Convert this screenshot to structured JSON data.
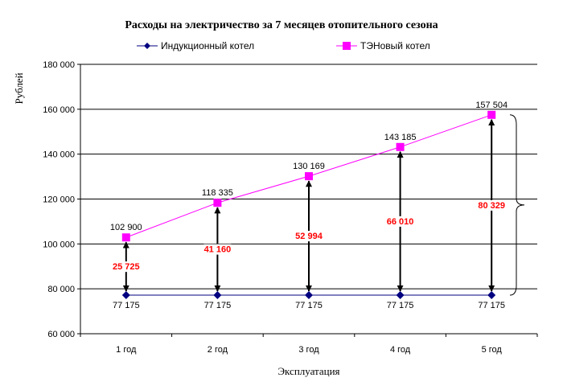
{
  "chart_data": {
    "type": "line",
    "title": "Расходы на электричество за 7 месяцев отопительного сезона",
    "xlabel": "Эксплуатация",
    "ylabel": "Рублей",
    "categories": [
      "1 год",
      "2 год",
      "3 год",
      "4 год",
      "5 год"
    ],
    "ylim": [
      60000,
      180000
    ],
    "ytick_step": 20000,
    "ytick_labels": [
      "60 000",
      "80 000",
      "100 000",
      "120 000",
      "140 000",
      "160 000",
      "180 000"
    ],
    "grid": true,
    "legend_position": "top",
    "series": [
      {
        "name": "Индукционный котел",
        "values": [
          77175,
          77175,
          77175,
          77175,
          77175
        ],
        "labels": [
          "77 175",
          "77 175",
          "77 175",
          "77 175",
          "77 175"
        ],
        "color": "#000080",
        "marker": "diamond"
      },
      {
        "name": "ТЭНовый котел",
        "values": [
          102900,
          118335,
          130169,
          143185,
          157504
        ],
        "labels": [
          "102 900",
          "118 335",
          "130 169",
          "143 185",
          "157 504"
        ],
        "color": "#ff00ff",
        "marker": "square"
      }
    ],
    "differences": {
      "values": [
        25725,
        41160,
        52994,
        66010,
        80329
      ],
      "labels": [
        "25 725",
        "41 160",
        "52 994",
        "66 010",
        "80 329"
      ],
      "color": "#ff0000"
    }
  }
}
